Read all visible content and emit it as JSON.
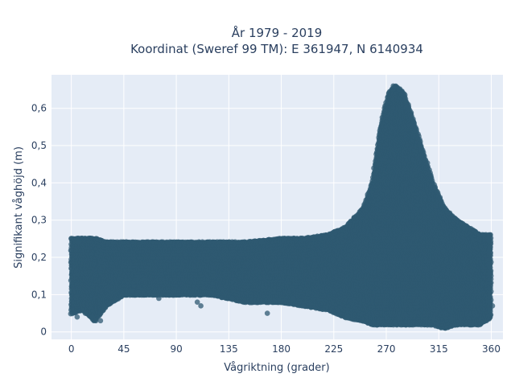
{
  "chart_data": {
    "type": "scatter",
    "title": {
      "line1": "År 1979 - 2019",
      "line2": "Koordinat (Sweref 99 TM): E 361947, N 6140934"
    },
    "xlabel": "Vågriktning (grader)",
    "ylabel": "Signifikant våghöjd (m)",
    "xlim": [
      -17,
      370
    ],
    "ylim": [
      -0.02,
      0.69
    ],
    "x_ticks": [
      0,
      45,
      90,
      135,
      180,
      225,
      270,
      315,
      360
    ],
    "x_tick_labels": [
      "0",
      "45",
      "90",
      "135",
      "180",
      "225",
      "270",
      "315",
      "360"
    ],
    "y_ticks": [
      0,
      0.1,
      0.2,
      0.3,
      0.4,
      0.5,
      0.6
    ],
    "y_tick_labels": [
      "0",
      "0,1",
      "0,2",
      "0,3",
      "0,4",
      "0,5",
      "0,6"
    ],
    "grid": true,
    "legend": false,
    "colors": {
      "marker": "#2f5a72",
      "plot_background": "#e5ecf6",
      "grid": "#ffffff",
      "text": "#2a3f5f"
    },
    "series": [
      {
        "envelope": [
          {
            "x": 0,
            "low": 0.05,
            "high": 0.25
          },
          {
            "x": 10,
            "low": 0.06,
            "high": 0.25
          },
          {
            "x": 20,
            "low": 0.03,
            "high": 0.25
          },
          {
            "x": 30,
            "low": 0.07,
            "high": 0.24
          },
          {
            "x": 45,
            "low": 0.1,
            "high": 0.24
          },
          {
            "x": 60,
            "low": 0.1,
            "high": 0.24
          },
          {
            "x": 90,
            "low": 0.1,
            "high": 0.24
          },
          {
            "x": 120,
            "low": 0.1,
            "high": 0.24
          },
          {
            "x": 150,
            "low": 0.08,
            "high": 0.24
          },
          {
            "x": 180,
            "low": 0.08,
            "high": 0.25
          },
          {
            "x": 200,
            "low": 0.07,
            "high": 0.25
          },
          {
            "x": 220,
            "low": 0.06,
            "high": 0.26
          },
          {
            "x": 235,
            "low": 0.04,
            "high": 0.28
          },
          {
            "x": 250,
            "low": 0.03,
            "high": 0.33
          },
          {
            "x": 258,
            "low": 0.02,
            "high": 0.4
          },
          {
            "x": 265,
            "low": 0.02,
            "high": 0.55
          },
          {
            "x": 272,
            "low": 0.02,
            "high": 0.64
          },
          {
            "x": 278,
            "low": 0.02,
            "high": 0.66
          },
          {
            "x": 285,
            "low": 0.02,
            "high": 0.64
          },
          {
            "x": 292,
            "low": 0.02,
            "high": 0.58
          },
          {
            "x": 300,
            "low": 0.02,
            "high": 0.5
          },
          {
            "x": 310,
            "low": 0.02,
            "high": 0.4
          },
          {
            "x": 320,
            "low": 0.01,
            "high": 0.33
          },
          {
            "x": 330,
            "low": 0.02,
            "high": 0.3
          },
          {
            "x": 340,
            "low": 0.02,
            "high": 0.28
          },
          {
            "x": 350,
            "low": 0.02,
            "high": 0.26
          },
          {
            "x": 360,
            "low": 0.04,
            "high": 0.26
          }
        ],
        "outliers": [
          {
            "x": 5,
            "y": 0.04
          },
          {
            "x": 12,
            "y": 0.05
          },
          {
            "x": 18,
            "y": 0.04
          },
          {
            "x": 21,
            "y": 0.03
          },
          {
            "x": 25,
            "y": 0.03
          },
          {
            "x": 28,
            "y": 0.07
          },
          {
            "x": 52,
            "y": 0.11
          },
          {
            "x": 56,
            "y": 0.1
          },
          {
            "x": 75,
            "y": 0.09
          },
          {
            "x": 108,
            "y": 0.08
          },
          {
            "x": 111,
            "y": 0.07
          },
          {
            "x": 138,
            "y": 0.09
          },
          {
            "x": 168,
            "y": 0.05
          },
          {
            "x": 190,
            "y": 0.09
          },
          {
            "x": 199,
            "y": 0.07
          },
          {
            "x": 237,
            "y": 0.04
          },
          {
            "x": 343,
            "y": 0.02
          },
          {
            "x": 361,
            "y": 0.07
          },
          {
            "x": 6,
            "y": 0.24
          },
          {
            "x": 22,
            "y": 0.25
          },
          {
            "x": 36,
            "y": 0.24
          },
          {
            "x": 83,
            "y": 0.24
          },
          {
            "x": 118,
            "y": 0.24
          },
          {
            "x": 163,
            "y": 0.24
          },
          {
            "x": 183,
            "y": 0.25
          },
          {
            "x": 200,
            "y": 0.25
          },
          {
            "x": 213,
            "y": 0.25
          },
          {
            "x": 276,
            "y": 0.66
          },
          {
            "x": 281,
            "y": 0.65
          }
        ]
      }
    ]
  }
}
